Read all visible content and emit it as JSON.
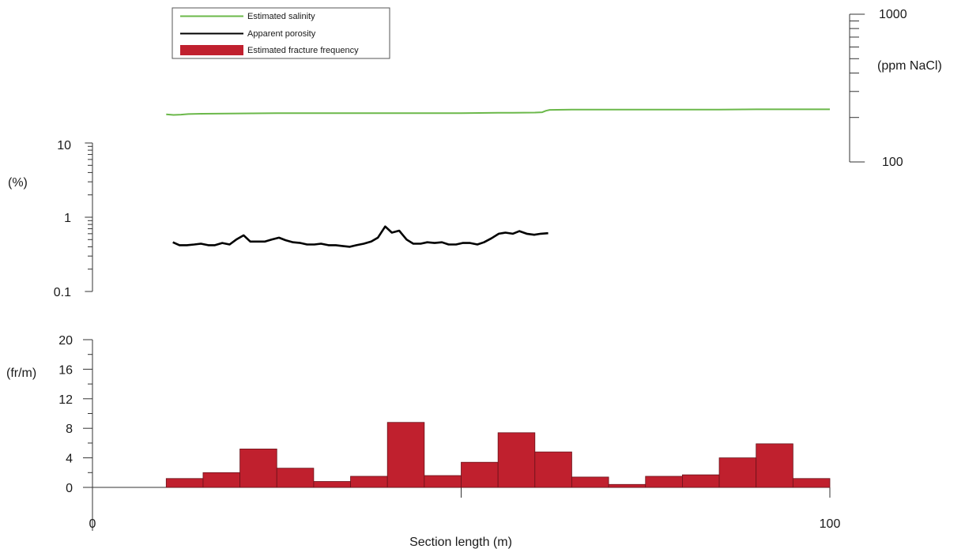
{
  "chart_data": [
    {
      "type": "line",
      "panel": "salinity",
      "ylabel": "(ppm NaCl)",
      "yscale": "log",
      "ylim": [
        100,
        1000
      ],
      "ytick_labels": [
        "100",
        "1000"
      ],
      "series": [
        {
          "name": "Estimated salinity",
          "color": "#6bb84a",
          "x": [
            10,
            11,
            12,
            13,
            15,
            20,
            25,
            30,
            35,
            40,
            45,
            50,
            55,
            57,
            60,
            61,
            61.5,
            62,
            65,
            70,
            75,
            80,
            85,
            90,
            95,
            100
          ],
          "y": [
            210,
            208,
            209,
            211,
            212,
            213,
            214,
            214,
            214,
            214,
            214,
            214,
            215,
            215,
            216,
            217,
            222,
            225,
            226,
            226,
            226,
            226,
            226,
            227,
            227,
            227
          ]
        }
      ]
    },
    {
      "type": "line",
      "panel": "porosity",
      "ylabel": "(%)",
      "yscale": "log",
      "ylim": [
        0.1,
        10
      ],
      "ytick_labels": [
        "0.1",
        "1",
        "10"
      ],
      "series": [
        {
          "name": "Apparent porosity",
          "color": "#000000",
          "x": [
            10.9,
            11.8,
            12.8,
            13.8,
            14.7,
            15.7,
            16.6,
            17.6,
            18.6,
            19.5,
            20.5,
            21.4,
            22.4,
            23.4,
            24.3,
            25.3,
            26.2,
            27.2,
            28.2,
            29.1,
            30.1,
            31.0,
            32.0,
            33.0,
            33.9,
            34.9,
            35.8,
            36.8,
            37.8,
            38.7,
            39.7,
            40.6,
            41.6,
            42.6,
            43.5,
            44.5,
            45.4,
            46.4,
            47.4,
            48.3,
            49.3,
            50.2,
            51.2,
            52.2,
            53.1,
            54.1,
            55.1,
            56.0,
            57.0,
            57.9,
            58.9,
            59.9,
            60.8,
            61.8
          ],
          "y": [
            0.46,
            0.42,
            0.42,
            0.43,
            0.44,
            0.42,
            0.42,
            0.45,
            0.43,
            0.5,
            0.57,
            0.47,
            0.47,
            0.47,
            0.5,
            0.53,
            0.49,
            0.46,
            0.45,
            0.43,
            0.43,
            0.44,
            0.42,
            0.42,
            0.41,
            0.4,
            0.42,
            0.44,
            0.47,
            0.53,
            0.75,
            0.62,
            0.66,
            0.5,
            0.44,
            0.44,
            0.46,
            0.45,
            0.46,
            0.43,
            0.43,
            0.45,
            0.45,
            0.43,
            0.46,
            0.52,
            0.6,
            0.62,
            0.6,
            0.65,
            0.6,
            0.58,
            0.6,
            0.61
          ]
        }
      ]
    },
    {
      "type": "bar",
      "panel": "fracture-frequency",
      "ylabel": "(fr/m)",
      "xlabel": "Section length (m)",
      "ylim": [
        0,
        20
      ],
      "ytick_labels": [
        "0",
        "4",
        "8",
        "12",
        "16",
        "20"
      ],
      "xlim": [
        0,
        100
      ],
      "xtick_labels": [
        "0",
        "100"
      ],
      "bar_width": 5,
      "series": [
        {
          "name": "Estimated fracture frequency",
          "color": "#c0202e",
          "x_start": [
            10,
            15,
            20,
            25,
            30,
            35,
            40,
            45,
            50,
            55,
            60,
            65,
            70,
            75,
            80,
            85,
            90,
            95
          ],
          "values": [
            1.2,
            2.0,
            5.2,
            2.6,
            0.8,
            1.5,
            8.8,
            1.6,
            3.4,
            7.4,
            4.8,
            1.4,
            0.4,
            1.5,
            1.7,
            4.0,
            5.9,
            1.2
          ]
        }
      ]
    }
  ]
}
